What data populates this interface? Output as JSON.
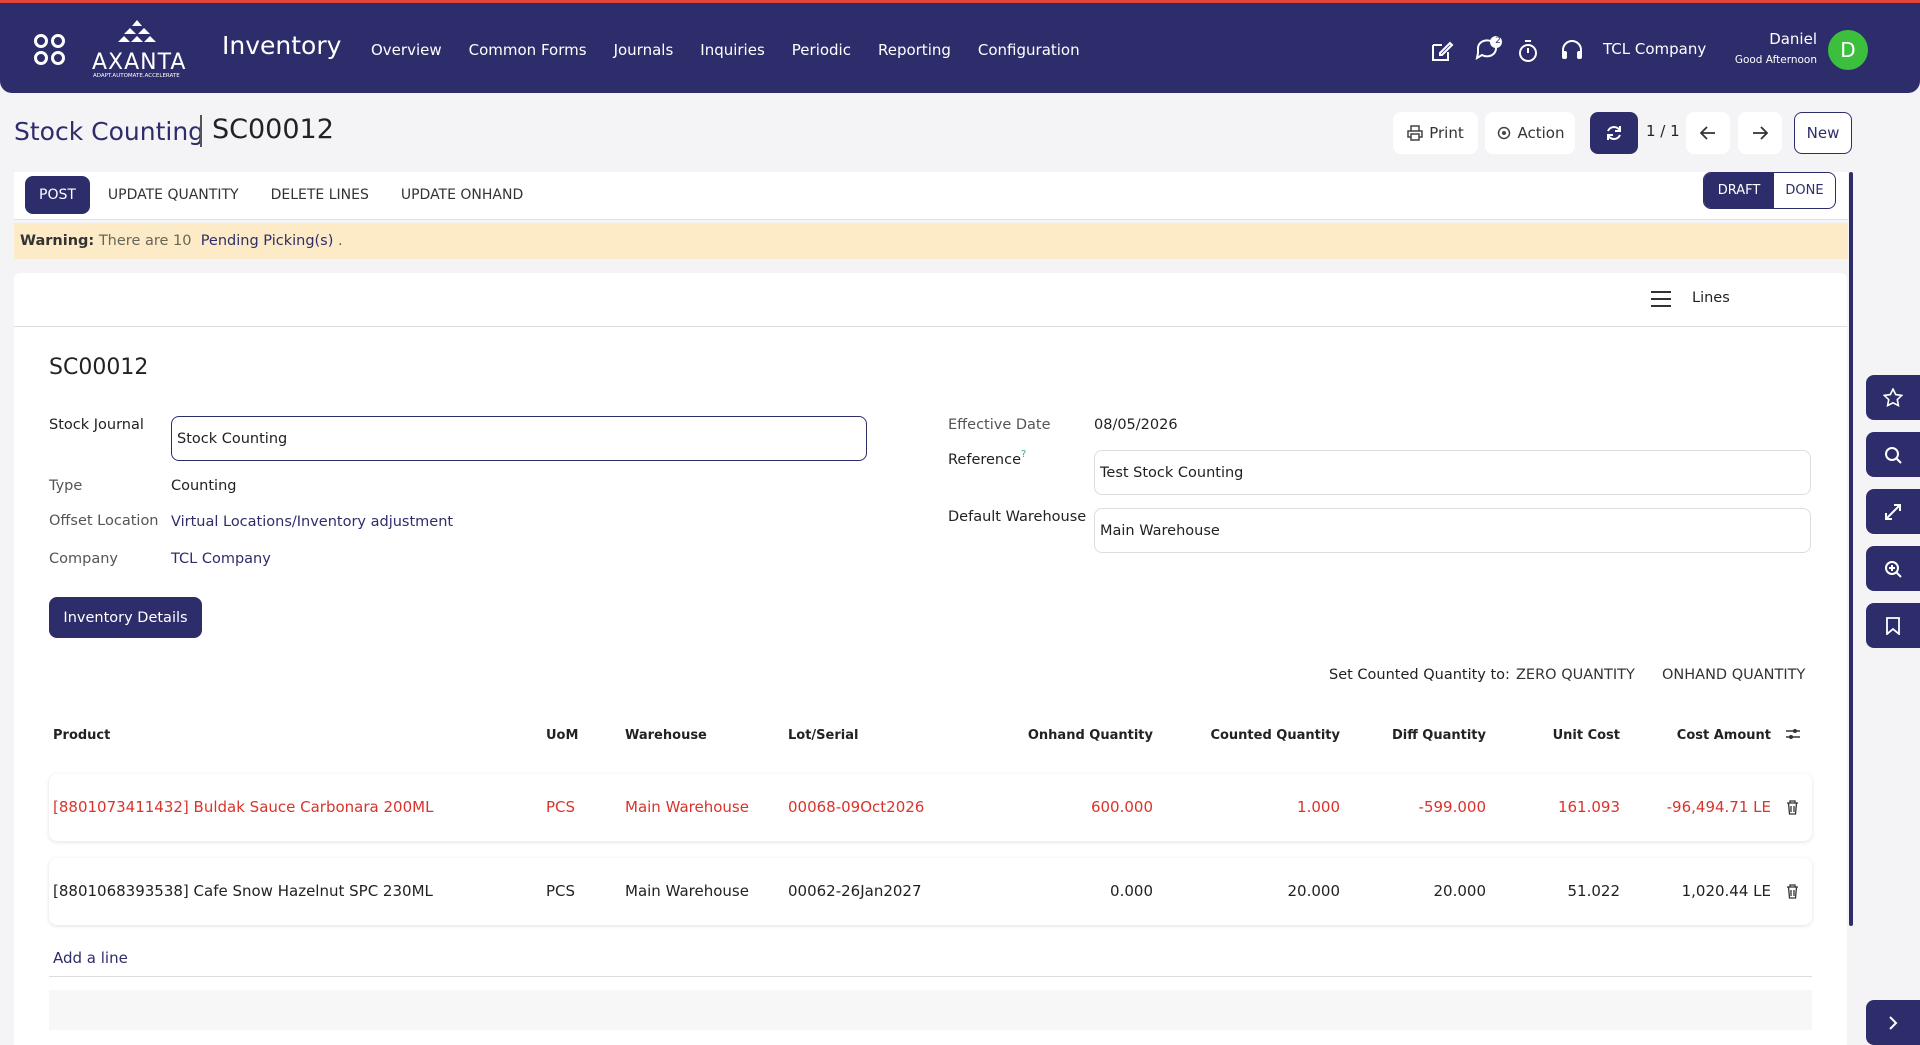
{
  "nav": {
    "brand": "AXANTA",
    "tagline": "ADAPT.AUTOMATE.ACCELERATE",
    "app": "Inventory",
    "menu": [
      "Overview",
      "Common Forms",
      "Journals",
      "Inquiries",
      "Periodic",
      "Reporting",
      "Configuration"
    ],
    "notification_count": "2",
    "company": "TCL Company",
    "user": "Daniel",
    "greeting": "Good Afternoon",
    "avatar": "D"
  },
  "breadcrumb": {
    "parent": "Stock Counting",
    "record": "SC00012"
  },
  "toolbar": {
    "print": "Print",
    "action": "Action",
    "pager": "1 / 1",
    "new": "New"
  },
  "buttons": [
    "POST",
    "UPDATE QUANTITY",
    "DELETE LINES",
    "UPDATE ONHAND"
  ],
  "status": [
    "DRAFT",
    "DONE"
  ],
  "warning": {
    "label": "Warning:",
    "text": "There are 10",
    "link": "Pending Picking(s)",
    "end": "."
  },
  "lines_toggle": "Lines",
  "form": {
    "name": "SC00012",
    "left": [
      {
        "label": "Stock Journal",
        "value": "Stock Counting"
      },
      {
        "label": "Type",
        "value": "Counting"
      },
      {
        "label": "Offset Location",
        "value": "Virtual Locations/Inventory adjustment"
      },
      {
        "label": "Company",
        "value": "TCL Company"
      }
    ],
    "right": [
      {
        "label": "Effective Date",
        "value": "08/05/2026"
      },
      {
        "label": "Reference",
        "help": "?",
        "value": "Test Stock Counting"
      },
      {
        "label": "Default Warehouse",
        "value": "Main Warehouse"
      }
    ]
  },
  "inventory_details": "Inventory Details",
  "set_counted": {
    "label": "Set Counted Quantity to:",
    "options": [
      "ZERO QUANTITY",
      "ONHAND QUANTITY"
    ]
  },
  "table": {
    "columns": [
      "Product",
      "UoM",
      "Warehouse",
      "Lot/Serial",
      "Onhand Quantity",
      "Counted Quantity",
      "Diff Quantity",
      "Unit Cost",
      "Cost Amount"
    ],
    "rows": [
      [
        "[8801073411432] Buldak Sauce Carbonara 200ML",
        "PCS",
        "Main Warehouse",
        "00068-09Oct2026",
        "600.000",
        "1.000",
        "-599.000",
        "161.093",
        "-96,494.71 LE"
      ],
      [
        "[8801068393538] Cafe Snow Hazelnut SPC 230ML",
        "PCS",
        "Main Warehouse",
        "00062-26Jan2027",
        "0.000",
        "20.000",
        "20.000",
        "51.022",
        "1,020.44 LE"
      ]
    ]
  },
  "add_line": "Add a line"
}
